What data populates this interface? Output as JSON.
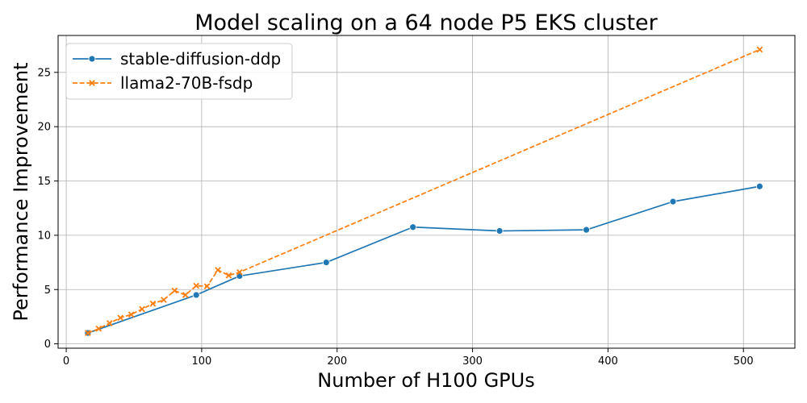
{
  "chart_data": {
    "type": "line",
    "title": "Model scaling on a 64 node P5 EKS cluster",
    "xlabel": "Number of H100 GPUs",
    "ylabel": "Performance Improvement",
    "xlim": [
      -6,
      538
    ],
    "ylim": [
      -0.4,
      28.4
    ],
    "xticks": [
      0,
      100,
      200,
      300,
      400,
      500
    ],
    "yticks": [
      0,
      5,
      10,
      15,
      20,
      25
    ],
    "grid": true,
    "legend_position": "top-left",
    "series": [
      {
        "name": "stable-diffusion-ddp",
        "color": "#1f77b4",
        "marker": "circle",
        "line_style": "solid",
        "x": [
          16,
          96,
          128,
          192,
          256,
          320,
          384,
          448,
          512
        ],
        "y": [
          1.0,
          4.5,
          6.25,
          7.5,
          10.75,
          10.4,
          10.5,
          13.1,
          14.5
        ]
      },
      {
        "name": "llama2-70B-fsdp",
        "color": "#ff7f0e",
        "marker": "x",
        "line_style": "dashed",
        "x": [
          16,
          24,
          32,
          40,
          48,
          56,
          64,
          72,
          80,
          88,
          96,
          104,
          112,
          120,
          128,
          512
        ],
        "y": [
          1.0,
          1.4,
          1.9,
          2.4,
          2.7,
          3.2,
          3.7,
          4.05,
          4.9,
          4.5,
          5.35,
          5.3,
          6.8,
          6.3,
          6.6,
          27.1
        ]
      }
    ]
  }
}
